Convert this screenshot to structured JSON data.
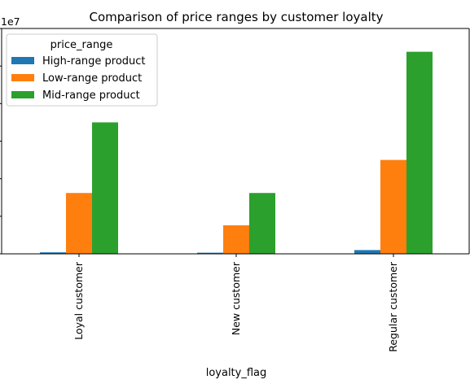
{
  "chart_data": {
    "type": "bar",
    "title": "Comparison of price ranges by customer loyalty",
    "xlabel": "loyalty_flag",
    "ylabel": "",
    "y_offset_text": "1e7",
    "categories": [
      "Loyal customer",
      "New customer",
      "Regular customer"
    ],
    "series": [
      {
        "name": "High-range product",
        "color": "#1f77b4",
        "values": [
          400000,
          300000,
          1000000
        ]
      },
      {
        "name": "Low-range product",
        "color": "#ff7f0e",
        "values": [
          16200000,
          7600000,
          25000000
        ]
      },
      {
        "name": "Mid-range product",
        "color": "#2ca02c",
        "values": [
          35000000,
          16200000,
          53800000
        ]
      }
    ],
    "ylim": [
      0,
      60000000
    ],
    "y_ticks": [
      0,
      10000000,
      20000000,
      30000000,
      40000000,
      50000000,
      60000000
    ],
    "grid": false,
    "legend": {
      "title": "price_range",
      "placement": "top-left"
    }
  }
}
